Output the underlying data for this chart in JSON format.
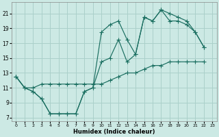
{
  "xlabel": "Humidex (Indice chaleur)",
  "bg_color": "#cce9e4",
  "grid_color": "#aad0ca",
  "line_color": "#1a6e60",
  "xlim": [
    -0.5,
    23.5
  ],
  "ylim": [
    6.5,
    22.5
  ],
  "xticks": [
    0,
    1,
    2,
    3,
    4,
    5,
    6,
    7,
    8,
    9,
    10,
    11,
    12,
    13,
    14,
    15,
    16,
    17,
    18,
    19,
    20,
    21,
    22,
    23
  ],
  "yticks": [
    7,
    9,
    11,
    13,
    15,
    17,
    19,
    21
  ],
  "line1_x": [
    0,
    1,
    2,
    3,
    4,
    5,
    6,
    7,
    8,
    9,
    10,
    11,
    12,
    13,
    14,
    15,
    16,
    17,
    18,
    19,
    20,
    21,
    22
  ],
  "line1_y": [
    12.5,
    11.0,
    10.5,
    9.5,
    7.5,
    7.5,
    7.5,
    7.5,
    10.5,
    11.0,
    14.5,
    15.0,
    17.5,
    14.5,
    15.5,
    20.5,
    20.0,
    21.5,
    21.0,
    20.5,
    20.0,
    18.5,
    16.5
  ],
  "line2_x": [
    0,
    1,
    2,
    3,
    4,
    5,
    6,
    7,
    8,
    9,
    10,
    11,
    12,
    13,
    14,
    15,
    16,
    17,
    18,
    19,
    20,
    21,
    22
  ],
  "line2_y": [
    12.5,
    11.0,
    10.5,
    9.5,
    7.5,
    7.5,
    7.5,
    7.5,
    10.5,
    11.0,
    18.5,
    19.5,
    20.0,
    17.5,
    15.5,
    20.5,
    20.0,
    21.5,
    20.0,
    20.0,
    19.5,
    18.5,
    16.5
  ],
  "line3_x": [
    0,
    1,
    2,
    3,
    4,
    5,
    6,
    7,
    8,
    9,
    10,
    11,
    12,
    13,
    14,
    15,
    16,
    17,
    18,
    19,
    20,
    21,
    22
  ],
  "line3_y": [
    12.5,
    11.0,
    11.0,
    11.5,
    11.5,
    11.5,
    11.5,
    11.5,
    11.5,
    11.5,
    11.5,
    12.0,
    12.5,
    13.0,
    13.0,
    13.5,
    14.0,
    14.0,
    14.5,
    14.5,
    14.5,
    14.5,
    14.5
  ]
}
